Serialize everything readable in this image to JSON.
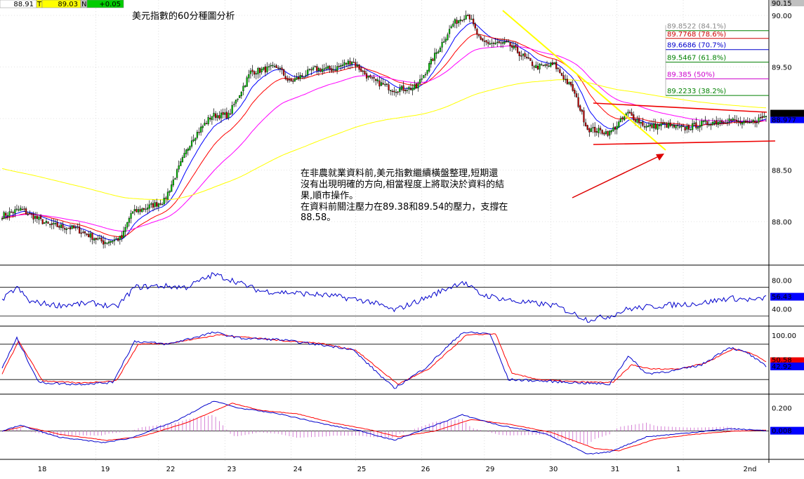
{
  "header": {
    "last": "88.91",
    "t_flag": "T",
    "price": "89.03",
    "n_flag": "N",
    "change": "+0.05"
  },
  "title": "美元指數的60分種圖分析",
  "annotation": {
    "lines": [
      "在非農就業資料前,美元指數繼續橫盤整理,短期還",
      "沒有出現明確的方向,相當程度上將取決於資料的結",
      "果,順市操作。",
      "在資料前關注壓力在89.38和89.54的壓力，支撐在",
      "88.58。"
    ]
  },
  "colors": {
    "up": "#00cc00",
    "down": "#cc0000",
    "ema_fast": "#0000ff",
    "ema_mid": "#ff0000",
    "ema_slow": "#ff00ff",
    "ema_long": "#ffff00",
    "rsi": "#0000cc",
    "fib_green": "#008000",
    "fib_red": "#cc0000",
    "fib_blue": "#0000cc",
    "fib_magenta": "#cc00cc",
    "label_bg": "#0000ff"
  },
  "chart_data": [
    {
      "type": "candlestick",
      "title": "美元指數的60分種圖分析",
      "x_labels": [
        "18",
        "19",
        "22",
        "23",
        "24",
        "25",
        "26",
        "29",
        "30",
        "31",
        "1",
        "2nd"
      ],
      "y_ticks": [
        "90.00",
        "89.50",
        "89.00",
        "88.50",
        "88.00"
      ],
      "ylim": [
        87.5,
        90.15
      ],
      "top_price_label": "90.15",
      "current_labels": [
        "89.03",
        "88.977"
      ],
      "fibonacci": [
        {
          "label": "89.8522 (84.1%)",
          "value": 89.8522
        },
        {
          "label": "89.7768 (78.6%)",
          "value": 89.7768
        },
        {
          "label": "89.6686 (70.7%)",
          "value": 89.6686
        },
        {
          "label": "89.5467 (61.8%)",
          "value": 89.5467
        },
        {
          "label": "89.385 (50%)",
          "value": 89.385
        },
        {
          "label": "89.2233 (38.2%)",
          "value": 89.2233
        }
      ],
      "anchors": [
        [
          0,
          88.06
        ],
        [
          10,
          88.12
        ],
        [
          25,
          87.97
        ],
        [
          40,
          87.93
        ],
        [
          55,
          87.8
        ],
        [
          65,
          87.84
        ],
        [
          70,
          88.08
        ],
        [
          88,
          88.2
        ],
        [
          103,
          88.8
        ],
        [
          114,
          89.03
        ],
        [
          123,
          89.03
        ],
        [
          135,
          89.45
        ],
        [
          150,
          89.5
        ],
        [
          156,
          89.35
        ],
        [
          170,
          89.48
        ],
        [
          180,
          89.48
        ],
        [
          190,
          89.56
        ],
        [
          200,
          89.38
        ],
        [
          213,
          89.28
        ],
        [
          225,
          89.3
        ],
        [
          245,
          89.92
        ],
        [
          253,
          90.02
        ],
        [
          260,
          89.74
        ],
        [
          268,
          89.73
        ],
        [
          275,
          89.72
        ],
        [
          290,
          89.5
        ],
        [
          300,
          89.52
        ],
        [
          310,
          89.28
        ],
        [
          318,
          88.9
        ],
        [
          330,
          88.86
        ],
        [
          340,
          89.05
        ],
        [
          350,
          88.92
        ],
        [
          360,
          88.94
        ],
        [
          370,
          88.9
        ],
        [
          380,
          88.95
        ],
        [
          395,
          88.99
        ],
        [
          405,
          88.94
        ],
        [
          415,
          89.03
        ]
      ]
    },
    {
      "type": "line",
      "name": "RSI",
      "y_ticks": [
        "80.00",
        "40.00"
      ],
      "ylim": [
        20,
        95
      ],
      "levels": [
        70,
        30
      ],
      "current_label": "56.43",
      "anchors": [
        [
          0,
          52
        ],
        [
          8,
          70
        ],
        [
          15,
          50
        ],
        [
          30,
          45
        ],
        [
          50,
          48
        ],
        [
          62,
          42
        ],
        [
          72,
          70
        ],
        [
          85,
          72
        ],
        [
          100,
          70
        ],
        [
          115,
          88
        ],
        [
          125,
          80
        ],
        [
          140,
          65
        ],
        [
          160,
          62
        ],
        [
          180,
          58
        ],
        [
          200,
          50
        ],
        [
          213,
          38
        ],
        [
          230,
          55
        ],
        [
          250,
          78
        ],
        [
          260,
          60
        ],
        [
          280,
          50
        ],
        [
          300,
          45
        ],
        [
          318,
          25
        ],
        [
          330,
          30
        ],
        [
          340,
          40
        ],
        [
          360,
          45
        ],
        [
          380,
          48
        ],
        [
          395,
          55
        ],
        [
          410,
          52
        ],
        [
          415,
          56
        ]
      ]
    },
    {
      "type": "line",
      "name": "Stochastic",
      "y_ticks": [
        "100.00"
      ],
      "ylim": [
        0,
        100
      ],
      "levels": [
        80,
        20
      ],
      "current_labels": [
        "50.58",
        "42.92"
      ],
      "k_anchors": [
        [
          0,
          40
        ],
        [
          8,
          90
        ],
        [
          20,
          15
        ],
        [
          40,
          12
        ],
        [
          60,
          15
        ],
        [
          72,
          85
        ],
        [
          90,
          80
        ],
        [
          115,
          100
        ],
        [
          130,
          90
        ],
        [
          150,
          88
        ],
        [
          170,
          80
        ],
        [
          190,
          72
        ],
        [
          213,
          5
        ],
        [
          230,
          40
        ],
        [
          250,
          100
        ],
        [
          265,
          98
        ],
        [
          275,
          20
        ],
        [
          290,
          18
        ],
        [
          310,
          15
        ],
        [
          330,
          12
        ],
        [
          340,
          60
        ],
        [
          350,
          30
        ],
        [
          365,
          35
        ],
        [
          380,
          45
        ],
        [
          395,
          75
        ],
        [
          405,
          65
        ],
        [
          415,
          42
        ]
      ],
      "d_anchors": [
        [
          0,
          30
        ],
        [
          9,
          85
        ],
        [
          22,
          18
        ],
        [
          42,
          14
        ],
        [
          62,
          18
        ],
        [
          74,
          80
        ],
        [
          92,
          82
        ],
        [
          118,
          96
        ],
        [
          132,
          92
        ],
        [
          152,
          86
        ],
        [
          172,
          82
        ],
        [
          192,
          70
        ],
        [
          215,
          12
        ],
        [
          232,
          38
        ],
        [
          252,
          95
        ],
        [
          268,
          98
        ],
        [
          277,
          30
        ],
        [
          292,
          20
        ],
        [
          312,
          16
        ],
        [
          332,
          15
        ],
        [
          342,
          45
        ],
        [
          352,
          38
        ],
        [
          367,
          38
        ],
        [
          382,
          48
        ],
        [
          397,
          72
        ],
        [
          407,
          65
        ],
        [
          415,
          50
        ]
      ]
    },
    {
      "type": "line",
      "name": "MACD",
      "y_ticks": [
        "0.200"
      ],
      "ylim": [
        -0.22,
        0.27
      ],
      "current_label": "0.008",
      "macd_anchors": [
        [
          0,
          0.0
        ],
        [
          10,
          0.05
        ],
        [
          30,
          -0.05
        ],
        [
          55,
          -0.1
        ],
        [
          70,
          -0.06
        ],
        [
          95,
          0.09
        ],
        [
          115,
          0.26
        ],
        [
          128,
          0.2
        ],
        [
          150,
          0.15
        ],
        [
          175,
          0.06
        ],
        [
          195,
          0.0
        ],
        [
          213,
          -0.08
        ],
        [
          230,
          0.02
        ],
        [
          250,
          0.14
        ],
        [
          270,
          0.05
        ],
        [
          295,
          -0.02
        ],
        [
          318,
          -0.2
        ],
        [
          330,
          -0.18
        ],
        [
          350,
          -0.05
        ],
        [
          370,
          -0.02
        ],
        [
          395,
          0.02
        ],
        [
          415,
          0.005
        ]
      ],
      "signal_anchors": [
        [
          0,
          0.0
        ],
        [
          12,
          0.04
        ],
        [
          32,
          -0.03
        ],
        [
          57,
          -0.08
        ],
        [
          75,
          -0.05
        ],
        [
          100,
          0.07
        ],
        [
          125,
          0.24
        ],
        [
          140,
          0.18
        ],
        [
          160,
          0.15
        ],
        [
          180,
          0.07
        ],
        [
          200,
          0.01
        ],
        [
          215,
          -0.05
        ],
        [
          235,
          0.0
        ],
        [
          255,
          0.1
        ],
        [
          275,
          0.06
        ],
        [
          298,
          -0.01
        ],
        [
          322,
          -0.15
        ],
        [
          335,
          -0.17
        ],
        [
          355,
          -0.07
        ],
        [
          375,
          -0.03
        ],
        [
          398,
          0.0
        ],
        [
          415,
          0.008
        ]
      ]
    }
  ]
}
